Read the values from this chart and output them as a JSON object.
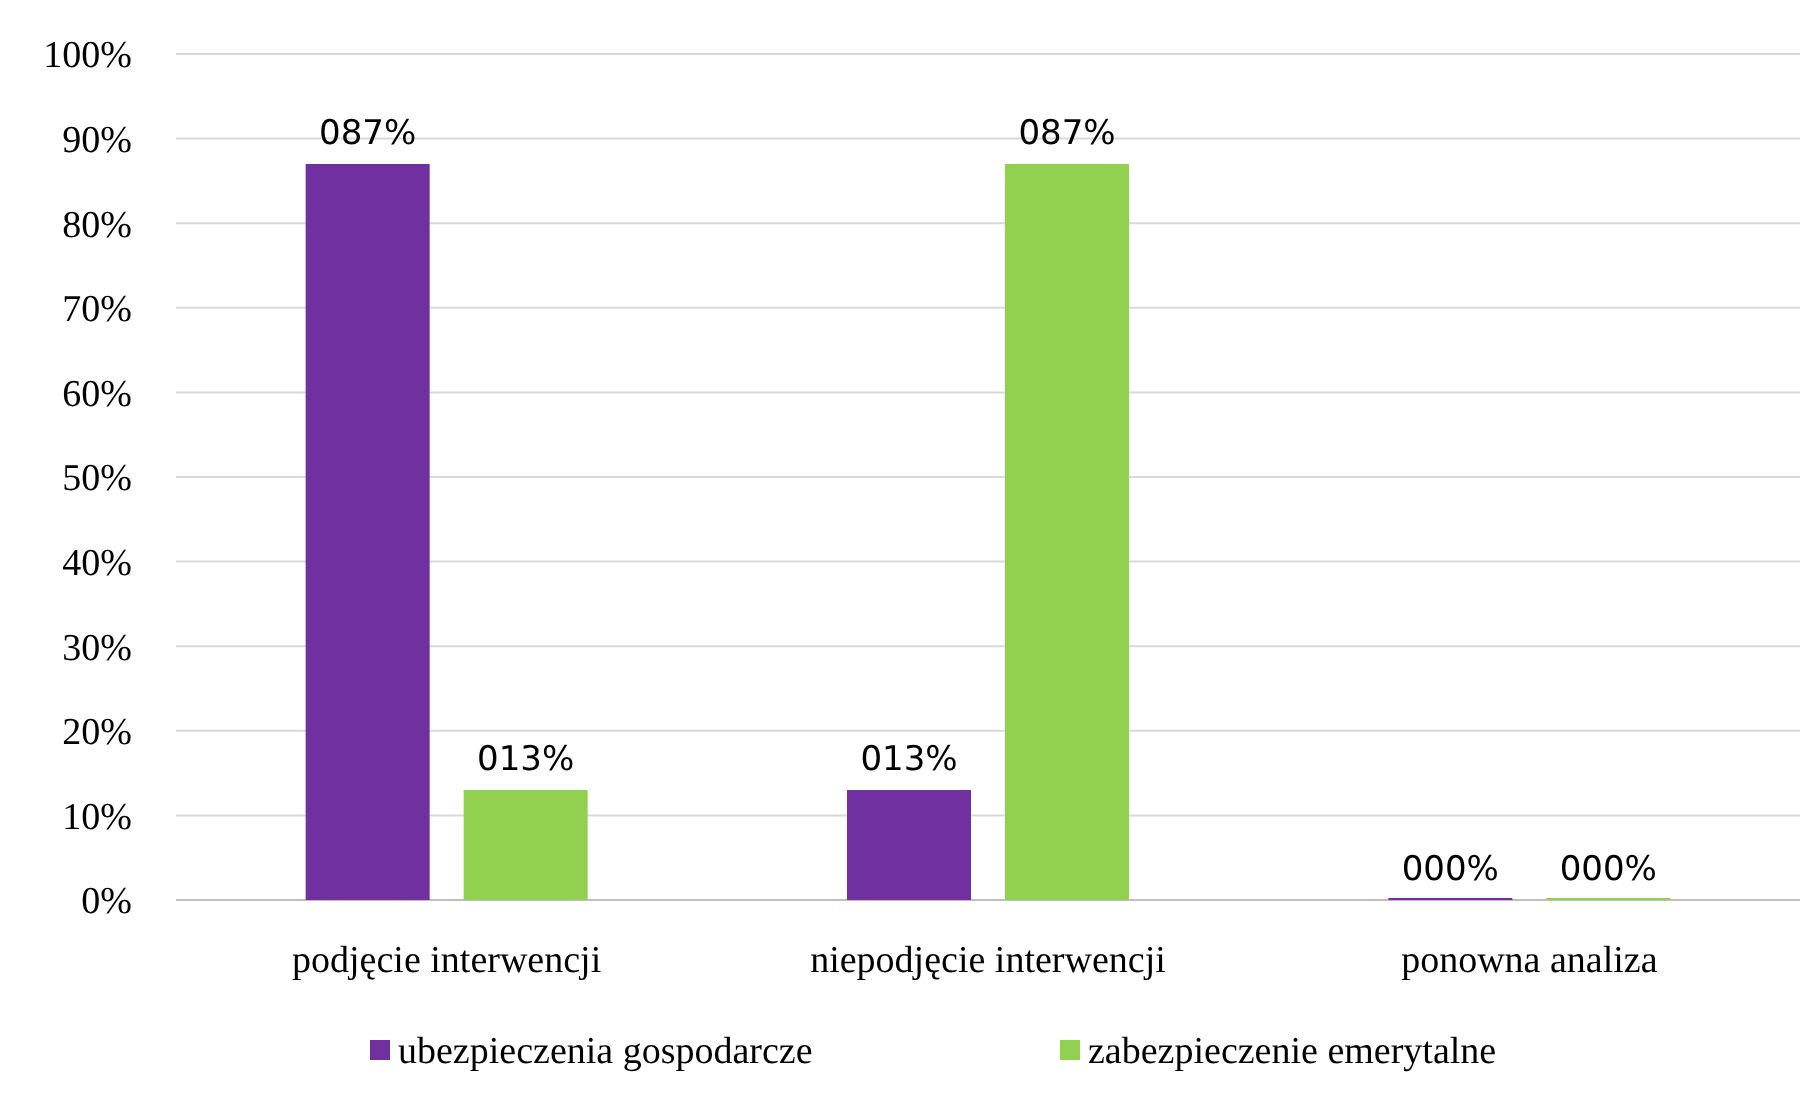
{
  "chart_data": {
    "type": "bar",
    "categories": [
      "podjęcie interwencji",
      "niepodjęcie interwencji",
      "ponowna analiza"
    ],
    "series": [
      {
        "name": "ubezpieczenia gospodarcze",
        "color": "#7030a0",
        "values": [
          87,
          13,
          0
        ],
        "value_labels": [
          "087%",
          "013%",
          "000%"
        ]
      },
      {
        "name": "zabezpieczenie emerytalne",
        "color": "#92d050",
        "values": [
          13,
          87,
          0
        ],
        "value_labels": [
          "013%",
          "087%",
          "000%"
        ]
      }
    ],
    "ylim": [
      0,
      100
    ],
    "yticks": [
      {
        "value": 0,
        "label": "0%"
      },
      {
        "value": 10,
        "label": "10%"
      },
      {
        "value": 20,
        "label": "20%"
      },
      {
        "value": 30,
        "label": "30%"
      },
      {
        "value": 40,
        "label": "40%"
      },
      {
        "value": 50,
        "label": "50%"
      },
      {
        "value": 60,
        "label": "60%"
      },
      {
        "value": 70,
        "label": "70%"
      },
      {
        "value": 80,
        "label": "80%"
      },
      {
        "value": 90,
        "label": "90%"
      },
      {
        "value": 100,
        "label": "100%"
      }
    ],
    "grid": "y",
    "legend": "bottom"
  }
}
